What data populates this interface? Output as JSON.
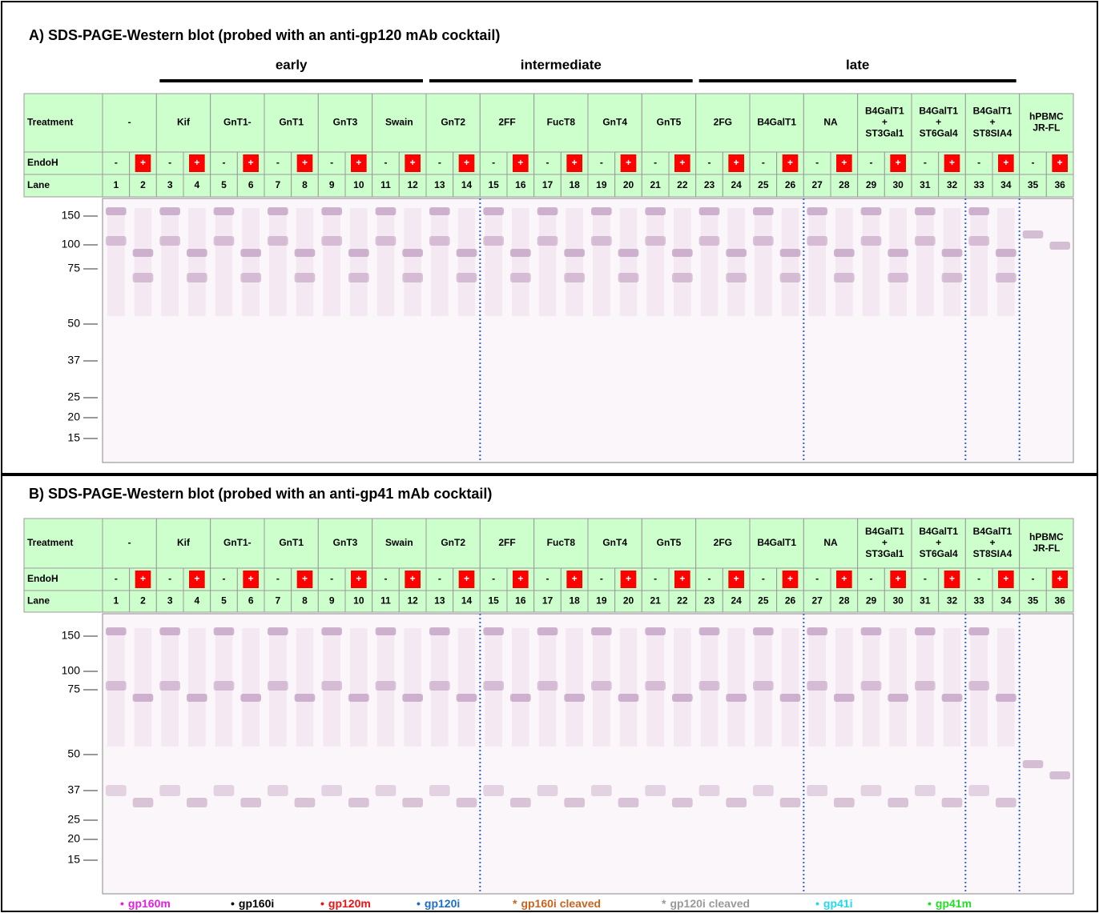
{
  "panels": [
    {
      "title": "A) SDS-PAGE-Western  blot (probed with an anti-gp120 mAb cocktail)",
      "groups": [
        "early",
        "intermediate",
        "late"
      ],
      "treatment_header": "Treatment",
      "endoh_header": "EndoH",
      "lane_header": "Lane",
      "treatments": [
        "-",
        "Kif",
        "GnT1-",
        "GnT1",
        "GnT3",
        "Swain",
        "GnT2",
        "2FF",
        "FucT8",
        "GnT4",
        "GnT5",
        "2FG",
        "B4GalT1",
        "NA",
        "B4GalT1\n+\nST3Gal1",
        "B4GalT1\n+\nST6Gal4",
        "B4GalT1\n+\nST8SIA4",
        "hPBMC\nJR-FL"
      ],
      "endoh": [
        "-",
        "+",
        "-",
        "+",
        "-",
        "+",
        "-",
        "+",
        "-",
        "+",
        "-",
        "+",
        "-",
        "+",
        "-",
        "+",
        "-",
        "+",
        "-",
        "+",
        "-",
        "+",
        "-",
        "+",
        "-",
        "+",
        "-",
        "+",
        "-",
        "+",
        "-",
        "+",
        "-",
        "+",
        "-",
        "+"
      ],
      "lanes": [
        1,
        2,
        3,
        4,
        5,
        6,
        7,
        8,
        9,
        10,
        11,
        12,
        13,
        14,
        15,
        16,
        17,
        18,
        19,
        20,
        21,
        22,
        23,
        24,
        25,
        26,
        27,
        28,
        29,
        30,
        31,
        32,
        33,
        34,
        35,
        36
      ],
      "mw_markers": [
        150,
        100,
        75,
        50,
        37,
        25,
        20,
        15
      ]
    },
    {
      "title": "B) SDS-PAGE-Western  blot (probed with an anti-gp41 mAb cocktail)",
      "treatment_header": "Treatment",
      "endoh_header": "EndoH",
      "lane_header": "Lane",
      "treatments": [
        "-",
        "Kif",
        "GnT1-",
        "GnT1",
        "GnT3",
        "Swain",
        "GnT2",
        "2FF",
        "FucT8",
        "GnT4",
        "GnT5",
        "2FG",
        "B4GalT1",
        "NA",
        "B4GalT1\n+\nST3Gal1",
        "B4GalT1\n+\nST6Gal4",
        "B4GalT1\n+\nST8SIA4",
        "hPBMC\nJR-FL"
      ],
      "endoh": [
        "-",
        "+",
        "-",
        "+",
        "-",
        "+",
        "-",
        "+",
        "-",
        "+",
        "-",
        "+",
        "-",
        "+",
        "-",
        "+",
        "-",
        "+",
        "-",
        "+",
        "-",
        "+",
        "-",
        "+",
        "-",
        "+",
        "-",
        "+",
        "-",
        "+",
        "-",
        "+",
        "-",
        "+",
        "-",
        "+"
      ],
      "lanes": [
        1,
        2,
        3,
        4,
        5,
        6,
        7,
        8,
        9,
        10,
        11,
        12,
        13,
        14,
        15,
        16,
        17,
        18,
        19,
        20,
        21,
        22,
        23,
        24,
        25,
        26,
        27,
        28,
        29,
        30,
        31,
        32,
        33,
        34,
        35,
        36
      ],
      "mw_markers": [
        150,
        100,
        75,
        50,
        37,
        25,
        20,
        15
      ]
    }
  ],
  "legend": [
    {
      "symbol": "•",
      "label": "gp160m",
      "color": "#e020e0"
    },
    {
      "symbol": "•",
      "label": "gp160i",
      "color": "#000000"
    },
    {
      "symbol": "•",
      "label": "gp120m",
      "color": "#ee1111"
    },
    {
      "symbol": "•",
      "label": "gp120i",
      "color": "#1a6fc4"
    },
    {
      "symbol": "*",
      "label": "gp160i cleaved",
      "color": "#c8641e"
    },
    {
      "symbol": "*",
      "label": "gp120i cleaved",
      "color": "#999999"
    },
    {
      "symbol": "•",
      "label": "gp41i",
      "color": "#22d8ee"
    },
    {
      "symbol": "•",
      "label": "gp41m",
      "color": "#22dd22"
    }
  ]
}
